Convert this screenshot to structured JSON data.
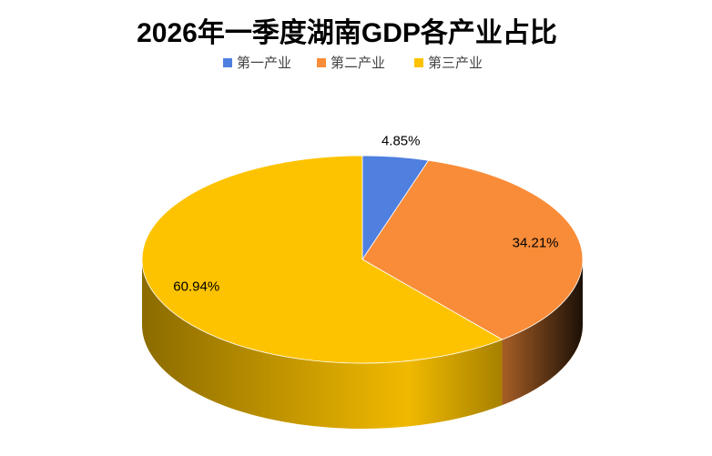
{
  "chart_data": {
    "type": "pie",
    "title": "2026年一季度湖南GDP各产业占比",
    "categories": [
      "第一产业",
      "第二产业",
      "第三产业"
    ],
    "values": [
      4.85,
      34.21,
      60.94
    ],
    "value_labels": [
      "4.85%",
      "34.21%",
      "60.94%"
    ],
    "colors": [
      "#4f7fdf",
      "#f98c38",
      "#fdc300"
    ],
    "legend": "top"
  }
}
